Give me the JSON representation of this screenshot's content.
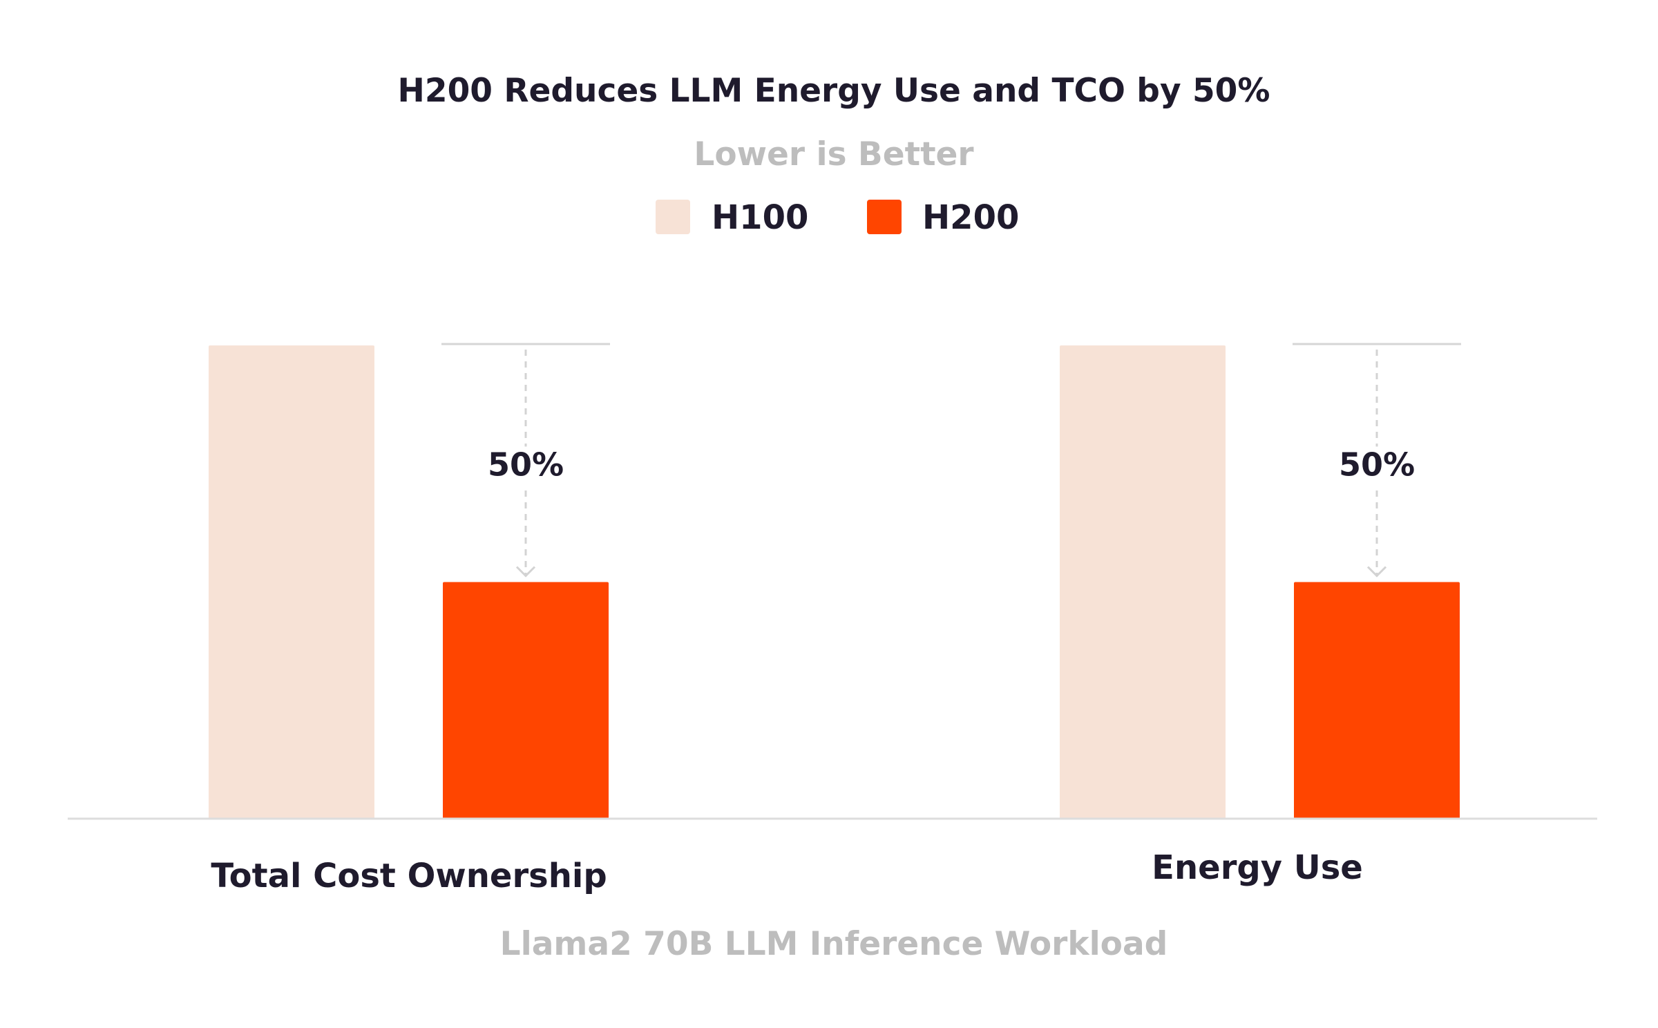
{
  "chart_data": {
    "type": "bar",
    "title": "H200 Reduces LLM Energy Use and TCO by 50%",
    "subtitle": "Lower is Better",
    "xlabel": "Llama2 70B LLM Inference Workload",
    "ylabel": "",
    "grid": false,
    "legend_position": "top-center",
    "ylim": [
      0,
      1
    ],
    "categories": [
      "Total Cost Ownership",
      "Energy Use"
    ],
    "series": [
      {
        "name": "H100",
        "color": "#f7e2d6",
        "values": [
          1.0,
          1.0
        ]
      },
      {
        "name": "H200",
        "color": "#ff4500",
        "values": [
          0.5,
          0.5
        ]
      }
    ],
    "annotations": [
      "50%",
      "50%"
    ]
  },
  "colors": {
    "axis": "#dddddd",
    "reference_line": "#d6d6d6",
    "arrow": "#d3d3d3"
  }
}
